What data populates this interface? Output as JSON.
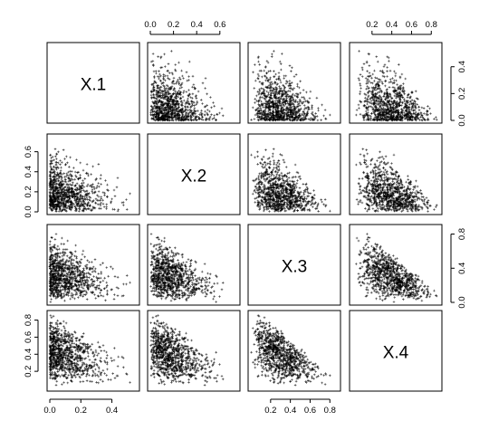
{
  "chart_data": {
    "type": "scatter",
    "subtype": "pairs-matrix",
    "title": "",
    "variables": [
      "X.1",
      "X.2",
      "X.3",
      "X.4"
    ],
    "ranges": [
      [
        0,
        0.56
      ],
      [
        0,
        0.75
      ],
      [
        0,
        0.88
      ],
      [
        0,
        0.88
      ]
    ],
    "ticks": [
      [
        "0.0",
        "0.2",
        "0.4"
      ],
      [
        "0.0",
        "0.2",
        "0.4",
        "0.6"
      ],
      [
        "0.0",
        "0.4",
        "0.8"
      ],
      [
        "0.2",
        "0.4",
        "0.6",
        "0.8"
      ]
    ],
    "tick_values": [
      [
        0,
        0.2,
        0.4
      ],
      [
        0,
        0.2,
        0.4,
        0.6
      ],
      [
        0,
        0.4,
        0.8
      ],
      [
        0.2,
        0.4,
        0.6,
        0.8
      ]
    ],
    "axis_tick_rows": {
      "top": [
        "0.0",
        "0.2",
        "0.4",
        "0.6",
        "0.2",
        "0.4",
        "0.6",
        "0.8"
      ],
      "bottom": [
        "0.0",
        "0.2",
        "0.4",
        "0.2",
        "0.4",
        "0.6",
        "0.8"
      ],
      "right": [
        "0.0",
        "0.2",
        "0.4",
        "0.0",
        "0.4",
        "0.8"
      ],
      "left": [
        "0.0",
        "0.2",
        "0.4",
        "0.6",
        "0.2",
        "0.4",
        "0.6"
      ]
    },
    "n_points": 900,
    "point_color": "#000000",
    "marker": "cross",
    "grid": false,
    "legend": "none",
    "distribution_note_values": {
      "X.1_mean": 0.12,
      "X.2_mean": 0.2,
      "X.3_mean": 0.3,
      "X.4_mean": 0.38
    }
  }
}
